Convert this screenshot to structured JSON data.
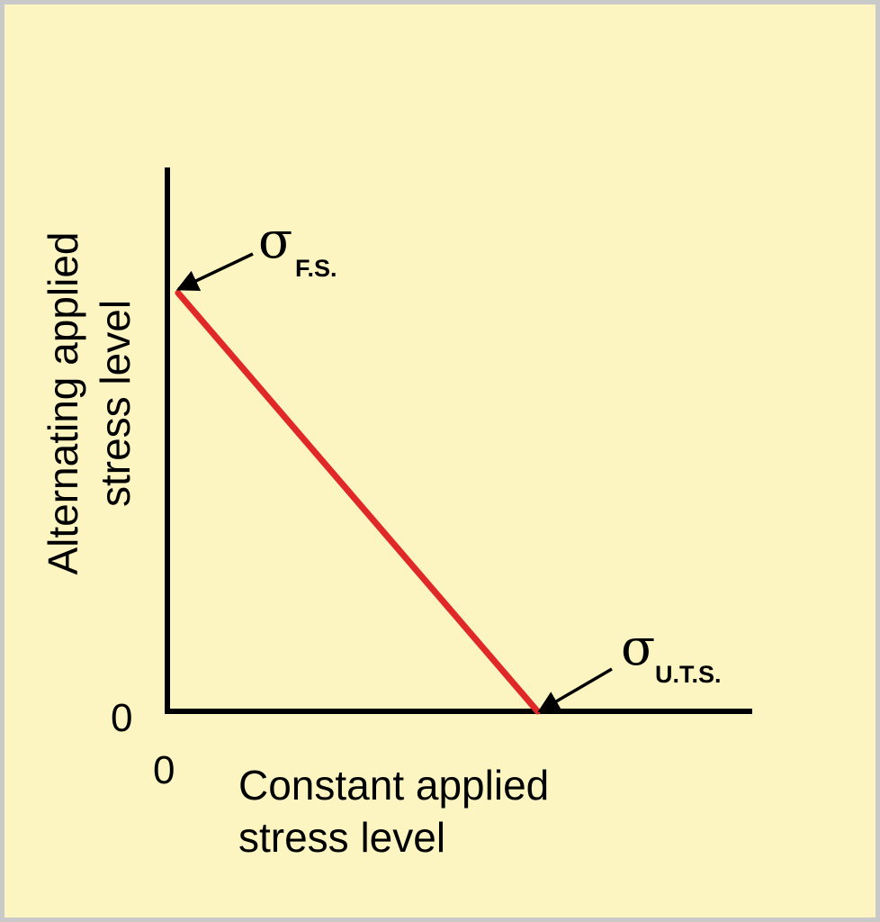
{
  "colors": {
    "background": "#fdf5c1",
    "border": "#c9c9c9",
    "line": "#e02828",
    "axis": "#000000"
  },
  "chart_data": {
    "type": "line",
    "title": "",
    "xlabel_lines": [
      "Constant applied",
      "stress level"
    ],
    "ylabel_lines": [
      "Alternating applied",
      "stress level"
    ],
    "x_tick_labels": [
      "0"
    ],
    "y_tick_labels": [
      "0"
    ],
    "series": [
      {
        "x": [
          0,
          1
        ],
        "y": [
          1,
          0
        ]
      }
    ],
    "xlim": [
      0,
      1.58
    ],
    "ylim": [
      0,
      1.3
    ],
    "grid": false,
    "annotations": [
      {
        "symbol": "σ",
        "subscript": "F.S.",
        "x": 0,
        "y": 1
      },
      {
        "symbol": "σ",
        "subscript": "U.T.S.",
        "x": 1,
        "y": 0
      }
    ]
  }
}
